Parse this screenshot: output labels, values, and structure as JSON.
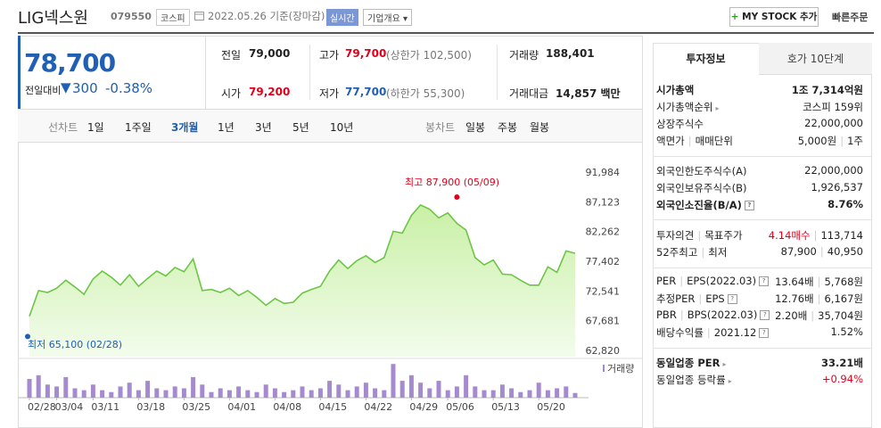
{
  "header": {
    "name": "LIG넥스원",
    "code": "079550",
    "market": "코스피",
    "date": "2022.05.26 기준(장마감)",
    "realtime": "실시간",
    "overview": "기업개요",
    "my_stock": "MY STOCK 추가",
    "quick_order": "빠른주문"
  },
  "quote": {
    "price": "78,700",
    "change_label": "전일대비",
    "change": "300",
    "change_rate": "-0.38%"
  },
  "summary": [
    [
      {
        "label": "전일",
        "value": "79,000"
      },
      {
        "label": "고가",
        "value": "79,700",
        "note": "(상한가 102,500)"
      },
      {
        "label": "거래량",
        "value": "188,401"
      }
    ],
    [
      {
        "label": "시가",
        "value": "79,200"
      },
      {
        "label": "저가",
        "value": "77,700",
        "note": "(하한가 55,300)"
      },
      {
        "label": "거래대금",
        "value": "14,857 백만"
      }
    ]
  ],
  "chart_tabs": {
    "line": {
      "label": "선차트",
      "periods": [
        "1일",
        "1주일",
        "3개월",
        "1년",
        "3년",
        "5년",
        "10년"
      ]
    },
    "candle": {
      "label": "봉차트",
      "periods": [
        "일봉",
        "주봉",
        "월봉"
      ]
    }
  },
  "side_tabs": [
    "투자정보",
    "호가 10단계"
  ],
  "invest_info": [
    [
      {
        "label": [
          "시가총액"
        ],
        "value": [
          "1조 7,314억원"
        ]
      },
      {
        "label": [
          "시가총액순위"
        ],
        "value": [
          "코스피 159위"
        ]
      },
      {
        "label": [
          "상장주식수"
        ],
        "value": [
          "22,000,000"
        ]
      },
      {
        "label": [
          "액면가",
          "매매단위"
        ],
        "value": [
          "5,000원",
          "1주"
        ]
      }
    ],
    [
      {
        "label": [
          "외국인한도주식수(A)"
        ],
        "value": [
          "22,000,000"
        ]
      },
      {
        "label": [
          "외국인보유주식수(B)"
        ],
        "value": [
          "1,926,537"
        ]
      },
      {
        "label": [
          "외국인소진율(B/A)"
        ],
        "value": [
          "8.76%"
        ]
      }
    ],
    [
      {
        "label": [
          "투자의견",
          "목표주가"
        ],
        "value": [
          "4.14매수",
          "113,714"
        ]
      },
      {
        "label": [
          "52주최고",
          "최저"
        ],
        "value": [
          "87,900",
          "40,950"
        ]
      }
    ],
    [
      {
        "label": [
          "PER",
          "EPS(2022.03)"
        ],
        "value": [
          "13.64배",
          "5,768원"
        ]
      },
      {
        "label": [
          "추정PER",
          "EPS"
        ],
        "value": [
          "12.76배",
          "6,167원"
        ]
      },
      {
        "label": [
          "PBR",
          "BPS(2022.03)"
        ],
        "value": [
          "2.20배",
          "35,704원"
        ]
      },
      {
        "label": [
          "배당수익률",
          "2021.12"
        ],
        "value": [
          "1.52%"
        ]
      }
    ],
    [
      {
        "label": [
          "동일업종 PER"
        ],
        "value": [
          "33.21배"
        ]
      },
      {
        "label": [
          "동일업종 등락률"
        ],
        "value": [
          "+0.94%"
        ]
      }
    ]
  ],
  "chart_data": [
    {
      "type": "line",
      "color": "#6cc644",
      "values": [
        68400,
        72600,
        72300,
        73000,
        74300,
        73200,
        72000,
        74500,
        75800,
        74800,
        73500,
        75200,
        73300,
        74600,
        75800,
        75000,
        76400,
        75700,
        77800,
        72600,
        72800,
        72300,
        73000,
        71800,
        72600,
        71500,
        70200,
        71300,
        70500,
        70700,
        72200,
        72800,
        73300,
        75800,
        77600,
        76200,
        77500,
        78300,
        77200,
        78000,
        82300,
        82000,
        84900,
        86600,
        85900,
        84500,
        85300,
        83600,
        82500,
        78000,
        76800,
        77600,
        75300,
        75200,
        74300,
        73500,
        73500,
        76500,
        75600,
        79100,
        78700
      ],
      "ylim": [
        62820,
        91984
      ],
      "yticks": [
        {
          "value": 91984,
          "label": "91,984"
        },
        {
          "value": 87123,
          "label": "87,123"
        },
        {
          "value": 82262,
          "label": "82,262"
        },
        {
          "value": 77402,
          "label": "77,402"
        },
        {
          "value": 72541,
          "label": "72,541"
        },
        {
          "value": 67681,
          "label": "67,681"
        },
        {
          "value": 62820,
          "label": "62,820"
        }
      ],
      "annotations": [
        {
          "text": "최고 87,900 (05/09)",
          "value": 87900,
          "color": "#e0001b"
        },
        {
          "text": "최저 65,100 (02/28)",
          "value": 65100,
          "color": "#1f5fb4"
        }
      ]
    },
    {
      "type": "bar",
      "legend": "거래량",
      "color": "#a58ad0",
      "ylim": [
        0,
        1500000
      ],
      "categories": [
        "02/28",
        null,
        null,
        "03/04",
        null,
        null,
        null,
        "03/11",
        null,
        null,
        null,
        null,
        "03/18",
        null,
        null,
        null,
        null,
        "03/25",
        null,
        null,
        null,
        null,
        "04/01",
        null,
        null,
        null,
        null,
        "04/08",
        null,
        null,
        null,
        null,
        "04/15",
        null,
        null,
        null,
        null,
        "04/22",
        null,
        null,
        null,
        null,
        "04/29",
        null,
        null,
        null,
        "05/06",
        null,
        null,
        null,
        null,
        "05/13",
        null,
        null,
        null,
        null,
        "05/20",
        null,
        null,
        null,
        null
      ],
      "values": [
        750000,
        900000,
        525000,
        450000,
        825000,
        375000,
        300000,
        525000,
        300000,
        225000,
        450000,
        600000,
        300000,
        675000,
        375000,
        300000,
        450000,
        375000,
        825000,
        525000,
        225000,
        375000,
        300000,
        450000,
        300000,
        225000,
        525000,
        375000,
        225000,
        300000,
        450000,
        300000,
        375000,
        675000,
        525000,
        300000,
        450000,
        600000,
        375000,
        300000,
        1350000,
        675000,
        900000,
        600000,
        375000,
        675000,
        300000,
        450000,
        900000,
        450000,
        300000,
        300000,
        525000,
        375000,
        225000,
        300000,
        600000,
        300000,
        375000,
        450000,
        188401
      ]
    }
  ]
}
